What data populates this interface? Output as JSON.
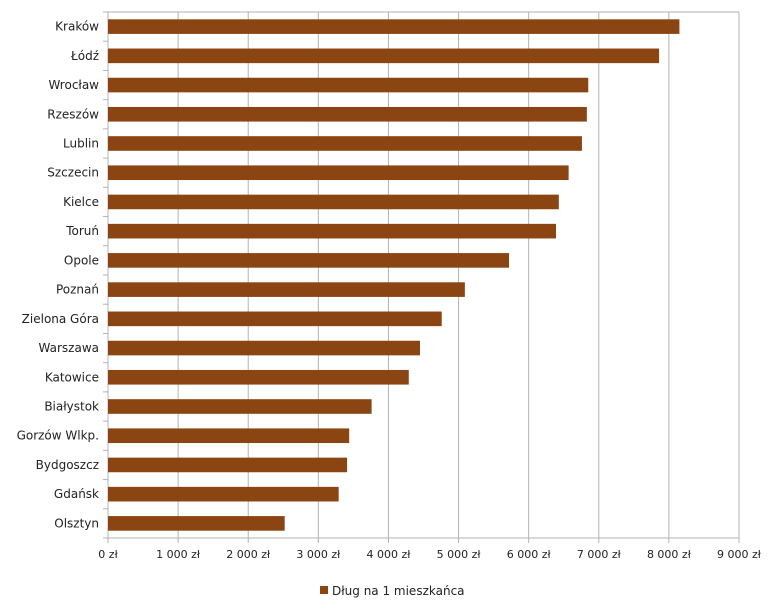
{
  "chart_data": {
    "type": "bar",
    "orientation": "horizontal",
    "title": "",
    "xlabel": "",
    "ylabel": "",
    "categories": [
      "Kraków",
      "Łódź",
      "Wrocław",
      "Rzeszów",
      "Lublin",
      "Szczecin",
      "Kielce",
      "Toruń",
      "Opole",
      "Poznań",
      "Zielona Góra",
      "Warszawa",
      "Katowice",
      "Białystok",
      "Gorzów Wlkp.",
      "Bydgoszcz",
      "Gdańsk",
      "Olsztyn"
    ],
    "series": [
      {
        "name": "Dług na 1 mieszkańca",
        "color": "#8B4513",
        "values": [
          8150,
          7860,
          6850,
          6830,
          6760,
          6570,
          6430,
          6390,
          5720,
          5090,
          4760,
          4450,
          4290,
          3760,
          3440,
          3410,
          3290,
          2520
        ]
      }
    ],
    "xlim": [
      0,
      9000
    ],
    "x_ticks": [
      0,
      1000,
      2000,
      3000,
      4000,
      5000,
      6000,
      7000,
      8000,
      9000
    ],
    "x_tick_labels": [
      "0 zł",
      "1 000 zł",
      "2 000 zł",
      "3 000 zł",
      "4 000 zł",
      "5 000 zł",
      "6 000 zł",
      "7 000 zł",
      "8 000 zł",
      "9 000 zł"
    ],
    "grid": true,
    "legend_position": "bottom"
  },
  "colors": {
    "bar": "#8B4513",
    "grid": "#b3b3b3",
    "axis": "#b3b3b3"
  }
}
